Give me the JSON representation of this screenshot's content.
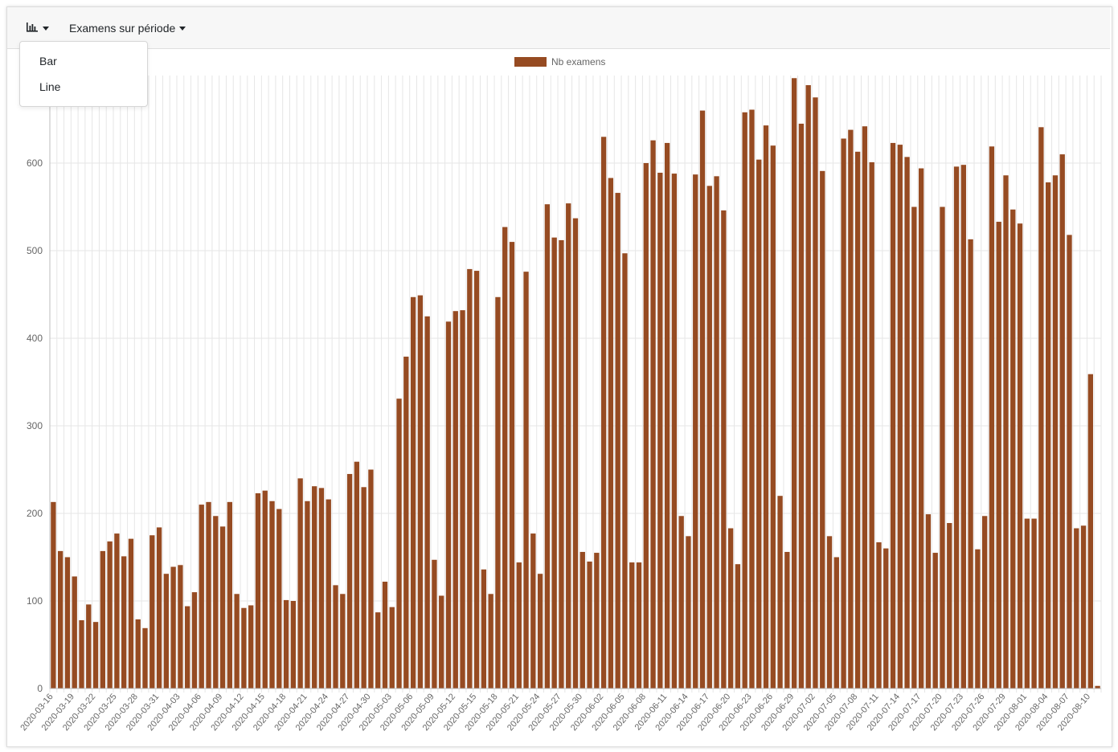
{
  "toolbar": {
    "chart_type_icon": "bar-chart-icon",
    "period_label": "Examens sur période"
  },
  "dropdown": {
    "items": [
      "Bar",
      "Line"
    ]
  },
  "colors": {
    "bar": "#964B22",
    "grid": "#e6e6e6",
    "tick_text": "#666666"
  },
  "chart_data": {
    "type": "bar",
    "legend": "Nb examens",
    "legend_position": "top-center",
    "grid": true,
    "start_date": "2020-03-16",
    "ylim": [
      0,
      700
    ],
    "yticks": [
      0,
      100,
      200,
      300,
      400,
      500,
      600
    ],
    "xtick_labels": [
      "2020-03-16",
      "2020-03-19",
      "2020-03-22",
      "2020-03-25",
      "2020-03-28",
      "2020-03-31",
      "2020-04-03",
      "2020-04-06",
      "2020-04-09",
      "2020-04-12",
      "2020-04-15",
      "2020-04-18",
      "2020-04-21",
      "2020-04-24",
      "2020-04-27",
      "2020-04-30",
      "2020-05-03",
      "2020-05-06",
      "2020-05-09",
      "2020-05-12",
      "2020-05-15",
      "2020-05-18",
      "2020-05-21",
      "2020-05-24",
      "2020-05-27",
      "2020-05-30",
      "2020-06-02",
      "2020-06-05",
      "2020-06-08",
      "2020-06-11",
      "2020-06-14",
      "2020-06-17",
      "2020-06-20",
      "2020-06-23",
      "2020-06-26",
      "2020-06-29",
      "2020-07-02",
      "2020-07-05",
      "2020-07-08",
      "2020-07-11",
      "2020-07-14",
      "2020-07-17",
      "2020-07-20",
      "2020-07-23",
      "2020-07-26",
      "2020-07-29",
      "2020-08-01",
      "2020-08-04",
      "2020-08-07",
      "2020-08-10"
    ],
    "values": [
      213,
      157,
      150,
      128,
      78,
      96,
      76,
      157,
      168,
      177,
      151,
      171,
      79,
      69,
      175,
      184,
      131,
      139,
      141,
      94,
      110,
      210,
      213,
      197,
      185,
      213,
      108,
      92,
      95,
      223,
      226,
      214,
      205,
      101,
      100,
      240,
      214,
      231,
      229,
      216,
      118,
      108,
      245,
      259,
      230,
      250,
      87,
      122,
      93,
      331,
      379,
      447,
      449,
      425,
      147,
      106,
      419,
      431,
      432,
      479,
      477,
      136,
      108,
      447,
      527,
      510,
      144,
      476,
      177,
      131,
      553,
      515,
      512,
      554,
      537,
      156,
      145,
      155,
      630,
      583,
      566,
      497,
      144,
      144,
      600,
      626,
      589,
      623,
      588,
      197,
      174,
      587,
      660,
      574,
      585,
      546,
      183,
      142,
      658,
      661,
      604,
      643,
      620,
      220,
      156,
      697,
      645,
      689,
      675,
      591,
      174,
      150,
      628,
      638,
      613,
      642,
      601,
      167,
      160,
      623,
      621,
      607,
      550,
      594,
      199,
      155,
      550,
      189,
      596,
      598,
      513,
      159,
      197,
      619,
      533,
      586,
      547,
      531,
      194,
      194,
      641,
      578,
      586,
      610,
      518,
      183,
      186,
      359,
      3
    ]
  }
}
